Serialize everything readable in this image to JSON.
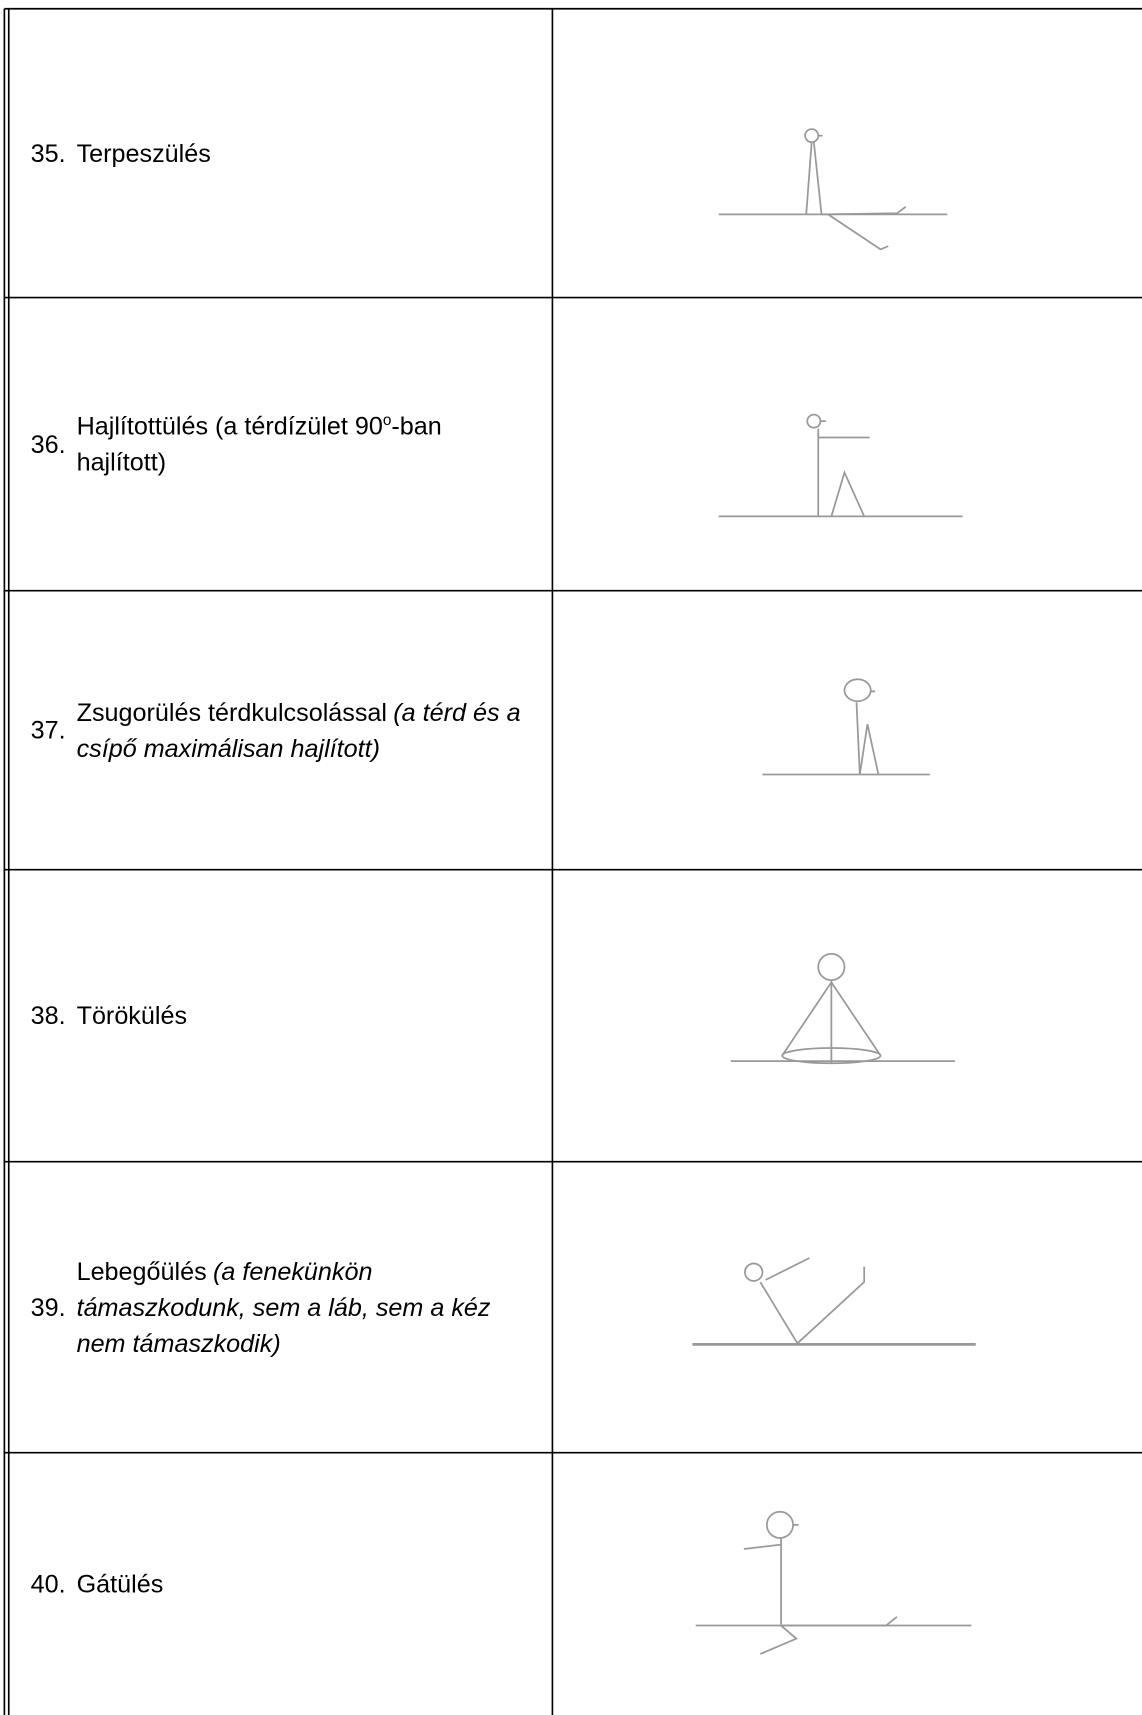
{
  "rows": [
    {
      "number": "35.",
      "text": "Terpeszülés"
    },
    {
      "number": "36.",
      "text": "Hajlítottülés (a térdízület 90",
      "sup": "o",
      "text_after": "-ban hajlított)"
    },
    {
      "number": "37.",
      "text": "Zsugorülés térdkulcsolással",
      "italic": "(a térd és a csípő maximálisan hajlított)"
    },
    {
      "number": "38.",
      "text": "Törökülés"
    },
    {
      "number": "39.",
      "text": "Lebegőülés",
      "italic": "(a fenekünkön támaszkodunk, sem a láb, sem a kéz nem támaszkodik)"
    },
    {
      "number": "40.",
      "text": "Gátülés"
    }
  ]
}
